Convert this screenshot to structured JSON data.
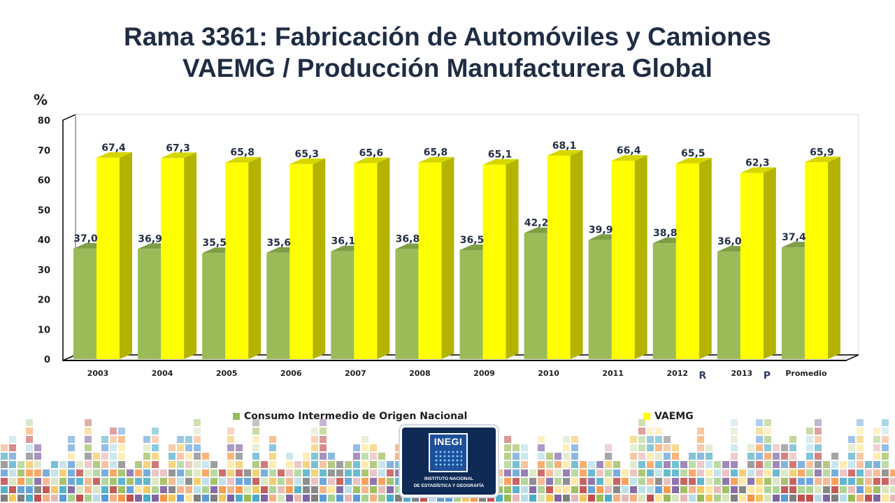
{
  "title": {
    "line1": "Rama 3361: Fabricación de Automóviles y Camiones",
    "line2": "VAEMG / Producción Manufacturera Global"
  },
  "colors": {
    "green_front": "#9bbb59",
    "green_side": "#6c8a35",
    "green_top": "#7e9e46",
    "yellow_front": "#ffff00",
    "yellow_side": "#b3b300",
    "yellow_top": "#d6d600",
    "title": "#1f2d44"
  },
  "chart_data": {
    "type": "bar",
    "style": "3d-clustered",
    "title": "",
    "xlabel": "",
    "ylabel": "%",
    "ylim": [
      0,
      80
    ],
    "yticks": [
      0,
      10,
      20,
      30,
      40,
      50,
      60,
      70,
      80
    ],
    "grid": false,
    "legend_position": "bottom",
    "categories": [
      "2003",
      "2004",
      "2005",
      "2006",
      "2007",
      "2008",
      "2009",
      "2010",
      "2011",
      "2012",
      "2013",
      "Promedio"
    ],
    "category_notes": {
      "2012": "R",
      "2013": "P"
    },
    "series": [
      {
        "name": "Consumo Intermedio de Origen Nacional",
        "color": "#9bbb59",
        "values": [
          37.0,
          36.9,
          35.5,
          35.6,
          36.1,
          36.8,
          36.5,
          42.2,
          39.9,
          38.8,
          36.0,
          37.4
        ],
        "labels": [
          "37,0",
          "36,9",
          "35,5",
          "35,6",
          "36,1",
          "36,8",
          "36,5",
          "42,2",
          "39,9",
          "38,8",
          "36,0",
          "37,4"
        ]
      },
      {
        "name": "VAEMG",
        "color": "#ffff00",
        "values": [
          67.4,
          67.3,
          65.8,
          65.3,
          65.6,
          65.8,
          65.1,
          68.1,
          66.4,
          65.5,
          62.3,
          65.9
        ],
        "labels": [
          "67,4",
          "67,3",
          "65,8",
          "65,3",
          "65,6",
          "65,8",
          "65,1",
          "68,1",
          "66,4",
          "65,5",
          "62,3",
          "65,9"
        ]
      }
    ]
  },
  "logo": {
    "mark": "INEGI",
    "line1": "INSTITUTO NACIONAL",
    "line2": "DE ESTADÍSTICA Y GEOGRAFÍA"
  }
}
